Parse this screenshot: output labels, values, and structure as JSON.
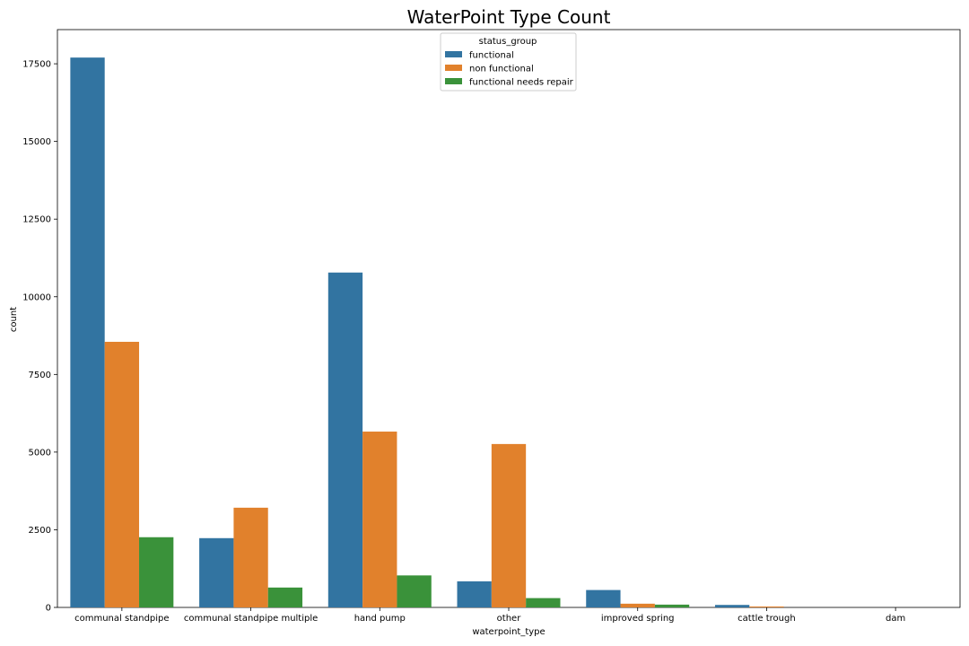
{
  "chart_data": {
    "type": "bar",
    "title": "WaterPoint Type Count",
    "xlabel": "waterpoint_type",
    "ylabel": "count",
    "ylim": [
      0,
      18600
    ],
    "yticks": [
      0,
      2500,
      5000,
      7500,
      10000,
      12500,
      15000,
      17500
    ],
    "categories": [
      "communal standpipe",
      "communal standpipe multiple",
      "hand pump",
      "other",
      "improved spring",
      "cattle trough",
      "dam"
    ],
    "series": [
      {
        "name": "functional",
        "color": "#3274a1",
        "values": [
          17700,
          2230,
          10780,
          840,
          560,
          80,
          0
        ]
      },
      {
        "name": "non functional",
        "color": "#e1812c",
        "values": [
          8550,
          3210,
          5660,
          5260,
          120,
          30,
          0
        ]
      },
      {
        "name": "functional needs repair",
        "color": "#3a923a",
        "values": [
          2260,
          640,
          1030,
          300,
          90,
          0,
          0
        ]
      }
    ],
    "legend": {
      "title": "status_group",
      "position": "top-center"
    },
    "grid": false
  }
}
